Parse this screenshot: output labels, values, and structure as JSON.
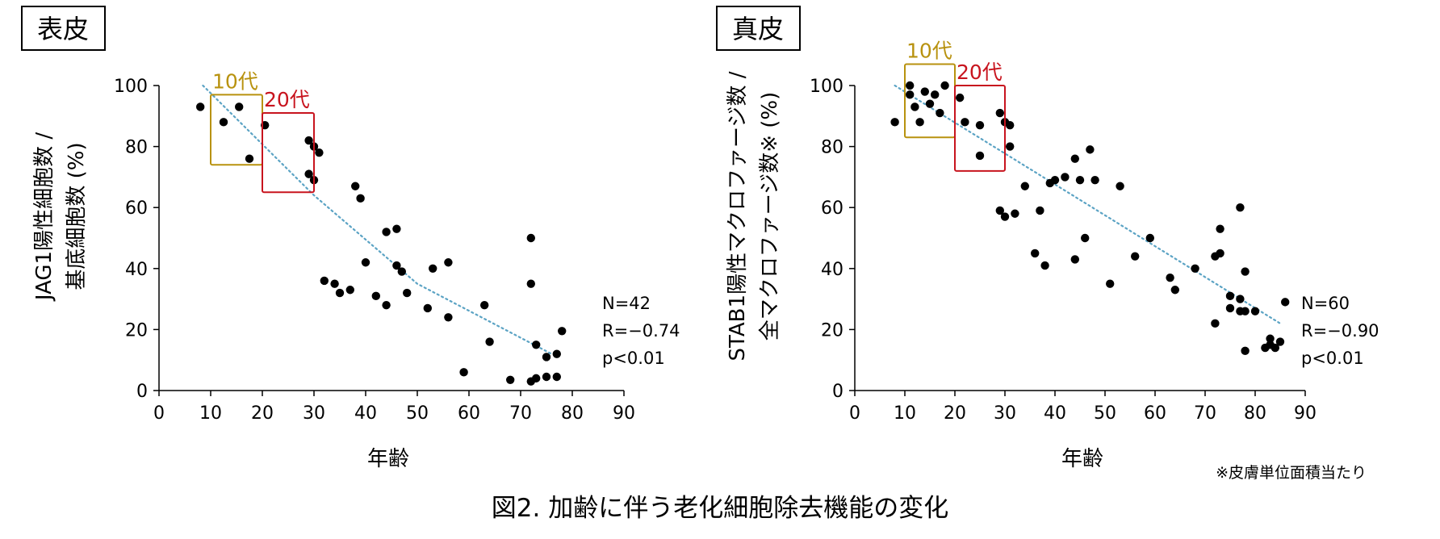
{
  "figure": {
    "caption": "図2. 加齢に伴う老化細胞除去機能の変化",
    "footnote": "※皮膚単位面積当たり"
  },
  "colors": {
    "teens": "#b8920f",
    "twenties": "#c8141e",
    "trend": "#5ba3c4",
    "points": "#000000"
  },
  "chart_data": [
    {
      "type": "scatter",
      "panel_label": "表皮",
      "xlabel": "年齢",
      "ylabel_line1": "JAG1陽性細胞数 /",
      "ylabel_line2": "基底細胞数 (%)",
      "xlim": [
        0,
        90
      ],
      "ylim": [
        0,
        100
      ],
      "x_ticks": [
        0,
        10,
        20,
        30,
        40,
        50,
        60,
        70,
        80,
        90
      ],
      "y_ticks": [
        0,
        20,
        40,
        60,
        80,
        100
      ],
      "grid": false,
      "stats": {
        "n": "N=42",
        "r": "R=−0.74",
        "p": "p<0.01"
      },
      "groups": [
        {
          "label": "10代",
          "x_range": [
            10,
            20
          ],
          "y_range": [
            74,
            97
          ],
          "color": "#b8920f"
        },
        {
          "label": "20代",
          "x_range": [
            20,
            30
          ],
          "y_range": [
            65,
            91
          ],
          "color": "#c8141e"
        }
      ],
      "trendline": {
        "type": "quadratic",
        "x_range": [
          8.5,
          76
        ],
        "points": [
          [
            8.5,
            100
          ],
          [
            30,
            64
          ],
          [
            50,
            35
          ],
          [
            76,
            12
          ]
        ]
      },
      "x": [
        8,
        12.5,
        15.5,
        17.5,
        20.5,
        29,
        30,
        31,
        29,
        30,
        32,
        34,
        35,
        37,
        38,
        39,
        40,
        42,
        44,
        44,
        46,
        46,
        47,
        48,
        52,
        53,
        56,
        56,
        59,
        63,
        64,
        68,
        72,
        72,
        72,
        73,
        73,
        75,
        75,
        77,
        77,
        78
      ],
      "y": [
        93,
        88,
        93,
        76,
        87,
        82,
        80,
        78,
        71,
        69,
        36,
        35,
        32,
        33,
        67,
        63,
        42,
        31,
        52,
        28,
        53,
        41,
        39,
        32,
        27,
        40,
        42,
        24,
        6,
        28,
        16,
        3.5,
        50,
        35,
        3,
        4,
        15,
        11,
        4.5,
        12,
        4.5,
        19.5
      ]
    },
    {
      "type": "scatter",
      "panel_label": "真皮",
      "xlabel": "年齢",
      "ylabel_line1": "STAB1陽性マクロファージ数 /",
      "ylabel_line2": "全マクロファージ数※ (%)",
      "xlim": [
        0,
        90
      ],
      "ylim": [
        0,
        100
      ],
      "x_ticks": [
        0,
        10,
        20,
        30,
        40,
        50,
        60,
        70,
        80,
        90
      ],
      "y_ticks": [
        0,
        20,
        40,
        60,
        80,
        100
      ],
      "grid": false,
      "stats": {
        "n": "N=60",
        "r": "R=−0.90",
        "p": "p<0.01"
      },
      "groups": [
        {
          "label": "10代",
          "x_range": [
            10,
            20
          ],
          "y_range": [
            83,
            107
          ],
          "color": "#b8920f"
        },
        {
          "label": "20代",
          "x_range": [
            20,
            30
          ],
          "y_range": [
            72,
            100
          ],
          "color": "#c8141e"
        }
      ],
      "trendline": {
        "type": "linear",
        "x_range": [
          8,
          85
        ],
        "points": [
          [
            8,
            100
          ],
          [
            85,
            22
          ]
        ]
      },
      "x": [
        8,
        11,
        11,
        12,
        13,
        14,
        15,
        16,
        17,
        18,
        21,
        22,
        25,
        25,
        29,
        30,
        31,
        31,
        29,
        30,
        32,
        34,
        36,
        37,
        38,
        39,
        40,
        42,
        44,
        44,
        45,
        46,
        47,
        48,
        51,
        53,
        56,
        59,
        63,
        64,
        68,
        72,
        72,
        73,
        73,
        75,
        75,
        77,
        77,
        78,
        78,
        80,
        82,
        83,
        84,
        85,
        86,
        77,
        78,
        83
      ],
      "y": [
        88,
        100,
        97,
        93,
        88,
        98,
        94,
        97,
        91,
        100,
        96,
        88,
        87,
        77,
        91,
        88,
        87,
        80,
        59,
        57,
        58,
        67,
        45,
        59,
        41,
        68,
        69,
        70,
        76,
        43,
        69,
        50,
        79,
        69,
        35,
        67,
        44,
        50,
        37,
        33,
        40,
        44,
        22,
        45,
        53,
        31,
        27,
        60,
        30,
        39,
        26,
        26,
        14,
        15,
        14,
        16,
        29,
        26,
        13,
        17
      ]
    }
  ]
}
